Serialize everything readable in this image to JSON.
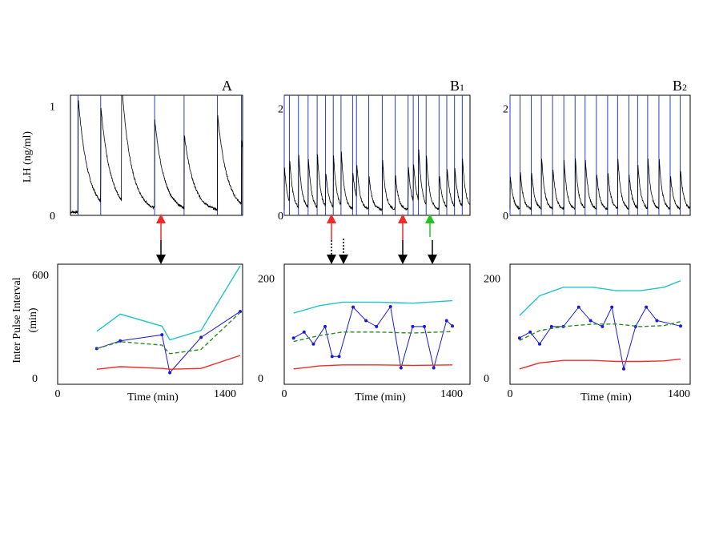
{
  "panels": [
    {
      "label": "A",
      "subscript": ""
    },
    {
      "label": "B",
      "subscript": "1"
    },
    {
      "label": "B",
      "subscript": "2"
    }
  ],
  "labels": {
    "top_ylabel": "LH (ng/ml)",
    "bottom_ylabel_line1": "Inter Pulse Interval",
    "bottom_ylabel_line2": "(min)",
    "xlabel": "Time (min)"
  },
  "colors": {
    "lh_trace": "#000000",
    "pulse_marker": "#2f3bc8",
    "ipi_series": "#1a1ad8",
    "upper_bound": "#21c4c8",
    "mean": "#2a8c1f",
    "lower_bound": "#ee2b2b",
    "arrow_red": "#ee2b2b",
    "arrow_green": "#26c21f",
    "arrow_black": "#000000"
  },
  "chart_data": [
    {
      "type": "line",
      "panel": "A",
      "top": {
        "ylabel": "LH (ng/ml)",
        "ylim": [
          0,
          1.1
        ],
        "yticks": [
          "0",
          "1"
        ],
        "xlim": [
          0,
          1440
        ],
        "pulse_times": [
          118,
          474,
          1320,
          1782,
          2305,
          2682
        ],
        "time_domain": [
          0,
          2700
        ],
        "pulses": [
          {
            "t": 118,
            "peak": 1.1
          },
          {
            "t": 474,
            "peak": 0.92
          },
          {
            "t": 800,
            "peak": 1.12
          },
          {
            "t": 1320,
            "peak": 0.85
          },
          {
            "t": 1782,
            "peak": 0.72
          },
          {
            "t": 2305,
            "peak": 0.92
          },
          {
            "t": 2682,
            "peak": 0.62
          }
        ],
        "baseline": 0.03
      },
      "bottom": {
        "ylabel": "Inter Pulse Interval (min)",
        "xlabel": "Time (min)",
        "xlim": [
          0,
          1400
        ],
        "ylim": [
          0,
          650
        ],
        "xticks": [
          "0",
          "1400"
        ],
        "yticks": [
          "0",
          "600"
        ],
        "series": [
          {
            "role": "ipi",
            "x": [
              300,
              480,
              800,
              860,
              1100,
              1400
            ],
            "y": [
              170,
              215,
              250,
              30,
              235,
              385
            ]
          },
          {
            "role": "upper",
            "x": [
              300,
              480,
              800,
              860,
              1100,
              1400
            ],
            "y": [
              270,
              370,
              300,
              220,
              275,
              650
            ]
          },
          {
            "role": "mean",
            "x": [
              300,
              480,
              800,
              860,
              1100,
              1400
            ],
            "y": [
              170,
              210,
              190,
              140,
              165,
              380
            ]
          },
          {
            "role": "lower",
            "x": [
              300,
              480,
              800,
              860,
              1100,
              1400
            ],
            "y": [
              50,
              65,
              55,
              50,
              55,
              130
            ]
          }
        ]
      }
    },
    {
      "type": "line",
      "panel": "B1",
      "top": {
        "ylabel": "LH (ng/ml)",
        "ylim": [
          0,
          2.25
        ],
        "yticks": [
          "0",
          "2"
        ],
        "xlim": [
          0,
          1440
        ],
        "pulse_times": [
          0,
          40,
          110,
          185,
          255,
          320,
          380,
          440,
          530,
          560,
          655,
          760,
          860,
          960,
          1000,
          1040,
          1100,
          1200,
          1260,
          1320,
          1380
        ],
        "baseline": 0.1
      },
      "bottom": {
        "ylabel": "Inter Pulse Interval (min)",
        "xlabel": "Time (min)",
        "xlim": [
          0,
          1440
        ],
        "ylim": [
          0,
          225
        ],
        "xticks": [
          "0",
          "1400"
        ],
        "yticks": [
          "0",
          "200"
        ],
        "series": [
          {
            "role": "ipi",
            "x": [
              80,
              170,
              250,
              350,
              410,
              470,
              590,
              700,
              790,
              910,
              1000,
              1100,
              1200,
              1280,
              1390,
              1440
            ],
            "y": [
              80,
              92,
              68,
              103,
              43,
              43,
              142,
              115,
              103,
              143,
              20,
              103,
              103,
              20,
              115,
              104
            ]
          },
          {
            "role": "upper",
            "x": [
              80,
              300,
              500,
              800,
              1100,
              1440
            ],
            "y": [
              130,
              145,
              152,
              152,
              150,
              155
            ]
          },
          {
            "role": "mean",
            "x": [
              80,
              300,
              500,
              800,
              1100,
              1440
            ],
            "y": [
              73,
              85,
              92,
              92,
              90,
              93
            ]
          },
          {
            "role": "lower",
            "x": [
              80,
              300,
              500,
              800,
              1100,
              1440
            ],
            "y": [
              18,
              24,
              26,
              26,
              25,
              26
            ]
          }
        ]
      }
    },
    {
      "type": "line",
      "panel": "B2",
      "top": {
        "ylabel": "LH (ng/ml)",
        "ylim": [
          0,
          2.25
        ],
        "yticks": [
          "0",
          "2"
        ],
        "xlim": [
          0,
          1440
        ],
        "pulse_times": [
          0,
          80,
          170,
          250,
          340,
          430,
          520,
          600,
          690,
          780,
          860,
          950,
          1020,
          1100,
          1190,
          1280,
          1360
        ],
        "baseline": 0.1
      },
      "bottom": {
        "ylabel": "Inter Pulse Interval (min)",
        "xlabel": "Time (min)",
        "xlim": [
          0,
          1440
        ],
        "ylim": [
          0,
          225
        ],
        "xticks": [
          "0",
          "1400"
        ],
        "yticks": [
          "0",
          "200"
        ],
        "series": [
          {
            "role": "ipi",
            "x": [
              80,
              170,
              250,
              350,
              450,
              580,
              680,
              780,
              860,
              960,
              1060,
              1150,
              1240,
              1440
            ],
            "y": [
              80,
              92,
              68,
              103,
              103,
              142,
              115,
              103,
              142,
              18,
              103,
              142,
              115,
              104
            ]
          },
          {
            "role": "upper",
            "x": [
              80,
              250,
              450,
              700,
              900,
              1100,
              1300,
              1440
            ],
            "y": [
              125,
              165,
              182,
              182,
              175,
              175,
              182,
              195
            ]
          },
          {
            "role": "mean",
            "x": [
              80,
              250,
              450,
              700,
              900,
              1100,
              1300,
              1440
            ],
            "y": [
              75,
              95,
              103,
              108,
              108,
              103,
              105,
              113
            ]
          },
          {
            "role": "lower",
            "x": [
              80,
              250,
              450,
              700,
              900,
              1100,
              1300,
              1440
            ],
            "y": [
              18,
              30,
              35,
              35,
              33,
              33,
              34,
              38
            ]
          }
        ]
      }
    }
  ]
}
